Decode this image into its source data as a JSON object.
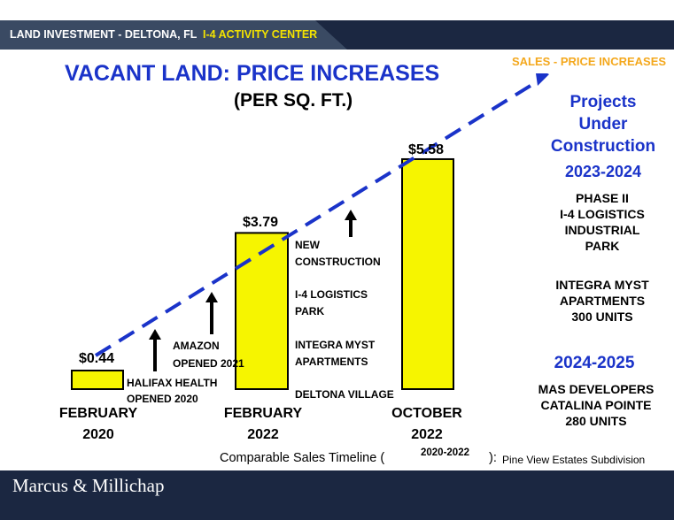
{
  "header": {
    "title": "LAND INVESTMENT - DELTONA, FL",
    "subtitle": "I-4 ACTIVITY CENTER",
    "sales_label": "SALES - PRICE INCREASES"
  },
  "colors": {
    "bar": "#f6f500",
    "trend": "#1a33c9",
    "title": "#1a33c9",
    "band": "#1b2741",
    "accent": "#f4a81d"
  },
  "chart_data": {
    "type": "bar",
    "title": "VACANT LAND: PRICE INCREASES",
    "subtitle": "(PER SQ. FT.)",
    "categories": [
      "FEBRUARY 2020",
      "FEBRUARY 2022",
      "OCTOBER 2022"
    ],
    "category_lines": [
      [
        "FEBRUARY",
        "2020"
      ],
      [
        "FEBRUARY",
        "2022"
      ],
      [
        "OCTOBER",
        "2022"
      ]
    ],
    "values": [
      0.44,
      3.79,
      5.58
    ],
    "value_labels": [
      "$0.44",
      "$3.79",
      "$5.58"
    ],
    "trend_line": "dashed arrow",
    "ylim": [
      0,
      6
    ]
  },
  "annotations": {
    "halifax": [
      "HALIFAX HEALTH",
      "OPENED 2020"
    ],
    "amazon": [
      "AMAZON",
      "OPENED 2021"
    ],
    "pipeline": [
      "NEW",
      "CONSTRUCTION",
      "",
      "I-4 LOGISTICS",
      "PARK",
      "",
      "INTEGRA MYST",
      "APARTMENTS",
      "",
      "DELTONA VILLAGE"
    ]
  },
  "sidebar": {
    "heading": [
      "Projects",
      "Under",
      "Construction"
    ],
    "period1": "2023-2024",
    "period1_projects": [
      [
        "PHASE II",
        "I-4 LOGISTICS",
        "INDUSTRIAL",
        "PARK"
      ],
      [
        "INTEGRA MYST",
        "APARTMENTS",
        "300 UNITS"
      ]
    ],
    "period2": "2024-2025",
    "period2_projects": [
      [
        "MAS DEVELOPERS",
        "CATALINA POINTE",
        "280 UNITS"
      ]
    ]
  },
  "timeline": {
    "label": "Comparable Sales Timeline (",
    "years": "2020-2022",
    "close": "):",
    "subdivision": "Pine View Estates Subdivision"
  },
  "footer": {
    "logo": "Marcus & Millichap"
  }
}
